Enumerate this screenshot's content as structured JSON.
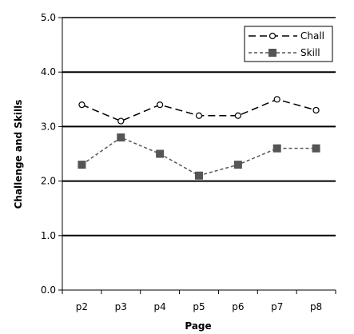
{
  "chart_data": {
    "type": "line",
    "title": "",
    "xlabel": "Page",
    "ylabel": "Challenge and Skills",
    "categories": [
      "p2",
      "p3",
      "p4",
      "p5",
      "p6",
      "p7",
      "p8"
    ],
    "ylim": [
      0,
      5
    ],
    "yticks": [
      "0.0",
      "1.0",
      "2.0",
      "3.0",
      "4.0",
      "5.0"
    ],
    "grid": "horizontal-major",
    "legend_position": "top-right",
    "series": [
      {
        "name": "Chall",
        "values": [
          3.4,
          3.1,
          3.4,
          3.2,
          3.2,
          3.5,
          3.3
        ],
        "color": "#000000",
        "line_style": "long-dash",
        "marker": "open-circle"
      },
      {
        "name": "Skill",
        "values": [
          2.3,
          2.8,
          2.5,
          2.1,
          2.3,
          2.6,
          2.6
        ],
        "color": "#555555",
        "line_style": "short-dash",
        "marker": "filled-square"
      }
    ]
  }
}
